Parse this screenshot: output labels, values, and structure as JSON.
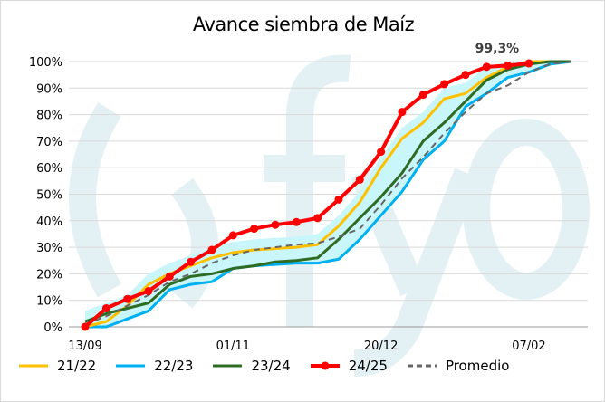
{
  "chart_data": {
    "type": "line",
    "title": "Avance siembra de Maíz",
    "xlabel": "",
    "ylabel": "",
    "ylim": [
      0,
      100
    ],
    "yticks": [
      "0%",
      "10%",
      "20%",
      "30%",
      "40%",
      "50%",
      "60%",
      "70%",
      "80%",
      "90%",
      "100%"
    ],
    "xtick_labels": [
      {
        "week": 0,
        "label": "13/09"
      },
      {
        "week": 7,
        "label": "01/11"
      },
      {
        "week": 14,
        "label": "20/12"
      },
      {
        "week": 21,
        "label": "07/02"
      }
    ],
    "x_unit": "week since 13/09",
    "annotation": "99,3%",
    "watermark": "(fyo",
    "series": [
      {
        "name": "21/22",
        "color": "#FFC000",
        "dashed": false,
        "markers": false,
        "values": [
          0,
          2,
          8,
          16,
          20,
          23,
          26,
          28,
          29,
          29.5,
          30,
          31,
          38,
          47,
          60,
          71,
          77,
          86,
          88,
          94,
          98,
          100,
          100,
          100
        ]
      },
      {
        "name": "22/23",
        "color": "#00B0F0",
        "dashed": false,
        "markers": false,
        "values": [
          0,
          0,
          3,
          6,
          14,
          16,
          17,
          22,
          23,
          23.5,
          24,
          24,
          25.5,
          33,
          42,
          51,
          63,
          70,
          83,
          88,
          94,
          96,
          99,
          100
        ]
      },
      {
        "name": "23/24",
        "color": "#2E6B23",
        "dashed": false,
        "markers": false,
        "values": [
          2,
          5,
          7,
          9,
          16,
          19,
          20,
          22,
          23,
          24.5,
          25,
          26,
          33,
          41,
          49,
          58,
          70,
          77,
          85,
          93,
          97,
          99,
          100,
          100
        ]
      },
      {
        "name": "24/25",
        "color": "#FF0000",
        "dashed": false,
        "markers": true,
        "values": [
          0,
          7,
          10.5,
          13.5,
          19,
          24.5,
          29,
          34.5,
          37,
          38.5,
          39.5,
          41,
          48,
          55.5,
          66,
          81,
          87.5,
          91.5,
          95,
          98,
          98.5,
          99.3
        ]
      },
      {
        "name": "Promedio",
        "color": "#666666",
        "dashed": true,
        "markers": false,
        "values": [
          1,
          4,
          8,
          12,
          17,
          20,
          24,
          27,
          29,
          30,
          31,
          31.5,
          34,
          37,
          46,
          56,
          64,
          73,
          81,
          88,
          91,
          96,
          99,
          100
        ]
      }
    ],
    "band_color": "#C9F6FB"
  }
}
